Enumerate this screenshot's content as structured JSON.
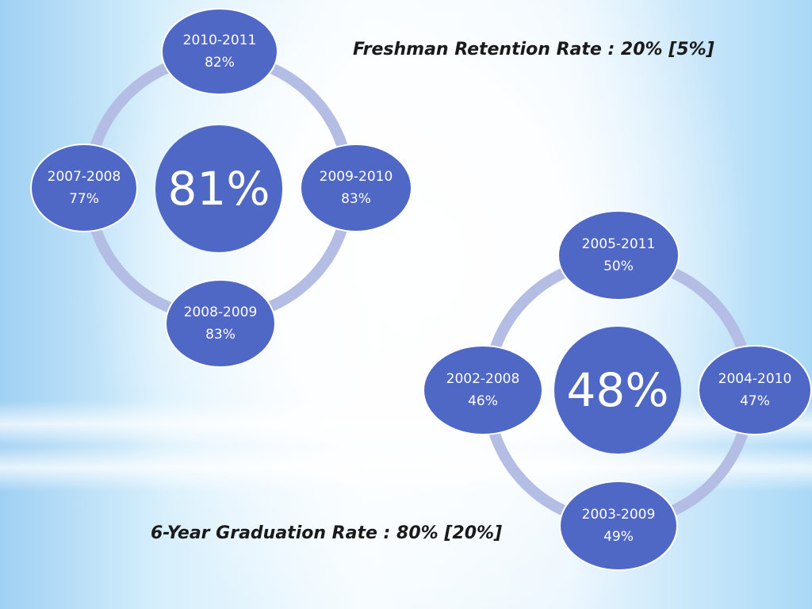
{
  "captions": {
    "retention": "Freshman Retention Rate : 20%  [5%]",
    "graduation": "6-Year Graduation Rate : 80% [20%]"
  },
  "retention_cycle": {
    "center": "81%",
    "nodes": [
      {
        "year": "2010-2011",
        "value": "82%"
      },
      {
        "year": "2009-2010",
        "value": "83%"
      },
      {
        "year": "2008-2009",
        "value": "83%"
      },
      {
        "year": "2007-2008",
        "value": "77%"
      }
    ]
  },
  "graduation_cycle": {
    "center": "48%",
    "nodes": [
      {
        "year": "2005-2011",
        "value": "50%"
      },
      {
        "year": "2004-2010",
        "value": "47%"
      },
      {
        "year": "2003-2009",
        "value": "49%"
      },
      {
        "year": "2002-2008",
        "value": "46%"
      }
    ]
  },
  "colors": {
    "node": "#4f67c5",
    "ring": "#b4bde3",
    "text": "#1a1a1a"
  }
}
